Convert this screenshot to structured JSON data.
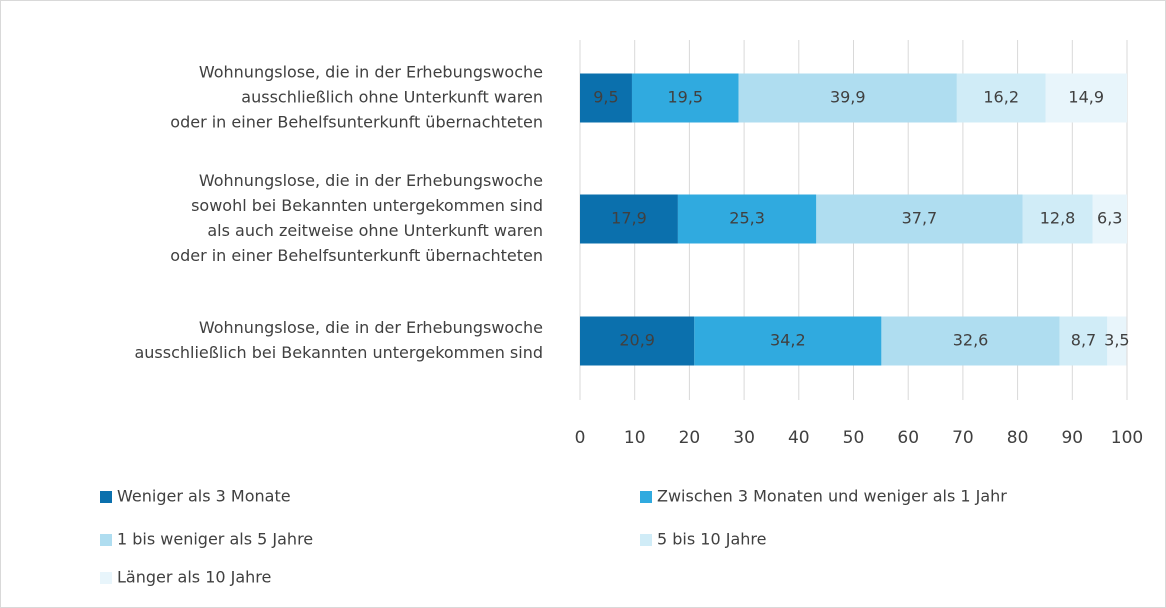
{
  "chart_data": {
    "type": "stacked-barh",
    "categories": [
      [
        "Wohnungslose, die in der Erhebungswoche",
        "ausschließlich ohne Unterkunft waren",
        "oder in einer Behelfsunterkunft übernachteten"
      ],
      [
        "Wohnungslose, die in der Erhebungswoche",
        "sowohl bei Bekannten untergekommen sind",
        "als auch zeitweise ohne Unterkunft waren",
        "oder in einer Behelfsunterkunft übernachteten"
      ],
      [
        "Wohnungslose, die in der Erhebungswoche",
        "ausschließlich bei Bekannten untergekommen sind"
      ]
    ],
    "series": [
      {
        "name": "Weniger als 3 Monate",
        "color": "#0b70ad",
        "values": [
          9.5,
          17.9,
          20.9
        ],
        "value_labels": [
          "9,5",
          "17,9",
          "20,9"
        ]
      },
      {
        "name": "Zwischen 3 Monaten und weniger als 1 Jahr",
        "color": "#30aadf",
        "values": [
          19.5,
          25.3,
          34.2
        ],
        "value_labels": [
          "19,5",
          "25,3",
          "34,2"
        ]
      },
      {
        "name": "1 bis weniger als 5 Jahre",
        "color": "#afddf0",
        "values": [
          39.9,
          37.7,
          32.6
        ],
        "value_labels": [
          "39,9",
          "37,7",
          "32,6"
        ]
      },
      {
        "name": "5 bis 10 Jahre",
        "color": "#d0ecf7",
        "values": [
          16.2,
          12.8,
          8.7
        ],
        "value_labels": [
          "16,2",
          "12,8",
          "8,7"
        ]
      },
      {
        "name": "Länger als 10 Jahre",
        "color": "#e8f5fb",
        "values": [
          14.9,
          6.3,
          3.5
        ],
        "value_labels": [
          "14,9",
          "6,3",
          "3,5"
        ]
      }
    ],
    "xlim": [
      0,
      100
    ],
    "xticks": [
      0,
      10,
      20,
      30,
      40,
      50,
      60,
      70,
      80,
      90,
      100
    ],
    "grid": true
  }
}
